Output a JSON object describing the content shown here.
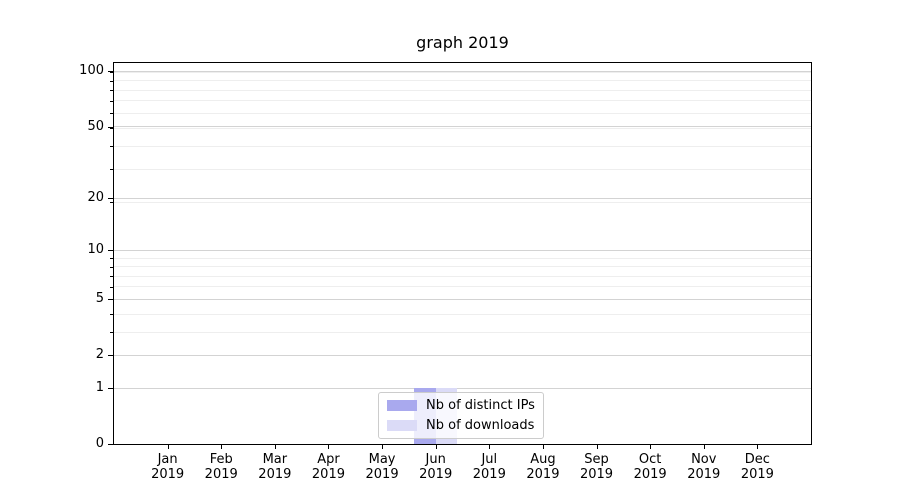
{
  "title": "graph 2019",
  "chart_data": {
    "type": "bar",
    "title": "graph 2019",
    "categories": [
      "Jan 2019",
      "Feb 2019",
      "Mar 2019",
      "Apr 2019",
      "May 2019",
      "Jun 2019",
      "Jul 2019",
      "Aug 2019",
      "Sep 2019",
      "Oct 2019",
      "Nov 2019",
      "Dec 2019"
    ],
    "series": [
      {
        "name": "Nb of distinct IPs",
        "color": "#a9a9ee",
        "values": [
          0,
          0,
          0,
          0,
          0,
          1,
          0,
          0,
          0,
          0,
          0,
          0
        ]
      },
      {
        "name": "Nb of downloads",
        "color": "#dbdbf7",
        "values": [
          0,
          0,
          0,
          0,
          0,
          1,
          0,
          0,
          0,
          0,
          0,
          0
        ]
      }
    ],
    "yscale": "log1p",
    "ylim": [
      0,
      110
    ],
    "ytick_values": [
      0,
      1,
      2,
      5,
      10,
      20,
      50,
      100
    ],
    "ytick_labels": [
      "0",
      "1",
      "2",
      "5",
      "10",
      "20",
      "50",
      "100"
    ],
    "minor_tick_values": [
      1,
      2,
      3,
      4,
      5,
      6,
      7,
      8,
      9,
      19,
      29,
      39,
      49,
      59,
      69,
      79,
      89,
      99
    ],
    "xlabel": "",
    "ylabel": "",
    "grid": "horizontal",
    "legend_position": "lower center"
  },
  "colors": {
    "background": "#ffffff",
    "axis": "#000000",
    "major_grid": "#d3d3d3",
    "minor_grid": "#eeeeee",
    "legend_border": "#cccccc",
    "text": "#000000"
  }
}
